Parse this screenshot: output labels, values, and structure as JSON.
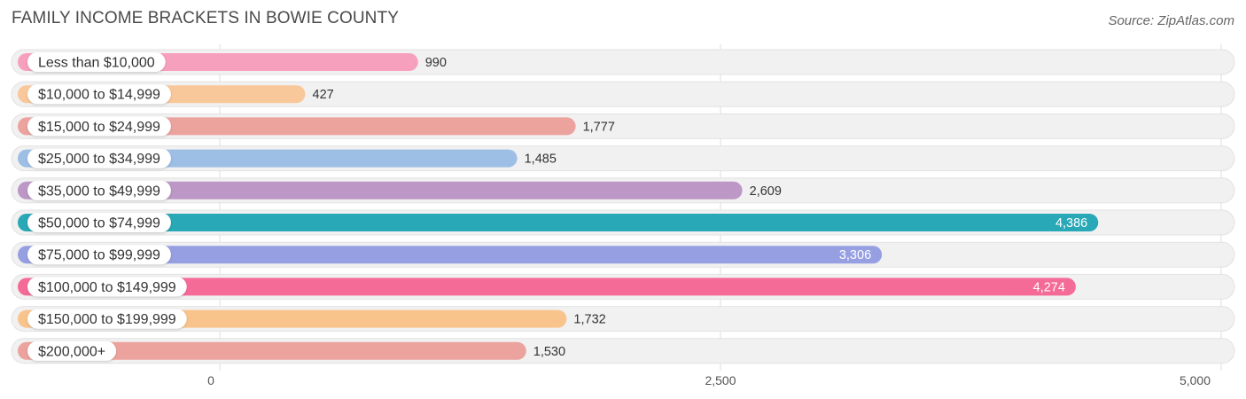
{
  "title": "FAMILY INCOME BRACKETS IN BOWIE COUNTY",
  "source": "Source: ZipAtlas.com",
  "chart_data": {
    "type": "bar",
    "orientation": "horizontal",
    "title": "FAMILY INCOME BRACKETS IN BOWIE COUNTY",
    "categories": [
      "Less than $10,000",
      "$10,000 to $14,999",
      "$15,000 to $24,999",
      "$25,000 to $34,999",
      "$35,000 to $49,999",
      "$50,000 to $74,999",
      "$75,000 to $99,999",
      "$100,000 to $149,999",
      "$150,000 to $199,999",
      "$200,000+"
    ],
    "values": [
      990,
      427,
      1777,
      1485,
      2609,
      4386,
      3306,
      4274,
      1732,
      1530
    ],
    "value_labels": [
      "990",
      "427",
      "1,777",
      "1,485",
      "2,609",
      "4,386",
      "3,306",
      "4,274",
      "1,732",
      "1,530"
    ],
    "colors": [
      "#f7a0bd",
      "#f9c89a",
      "#eca39e",
      "#9dbfe6",
      "#bd97c5",
      "#29a8b7",
      "#979fe3",
      "#f56b98",
      "#f9c38c",
      "#eca39e"
    ],
    "xlim": [
      0,
      5000
    ],
    "ticks": [
      0,
      2500,
      5000
    ],
    "tick_labels": [
      "0",
      "2,500",
      "5,000"
    ],
    "grid": true
  }
}
